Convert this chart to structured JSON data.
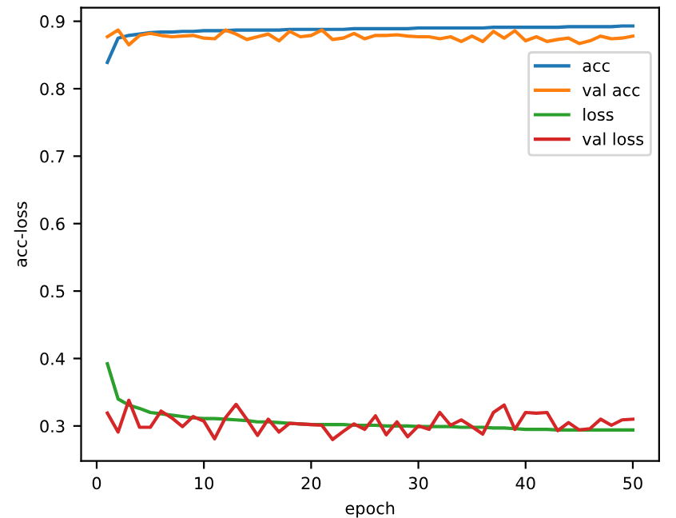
{
  "chart_data": {
    "type": "line",
    "xlabel": "epoch",
    "ylabel": "acc-loss",
    "x": [
      1,
      2,
      3,
      4,
      5,
      6,
      7,
      8,
      9,
      10,
      11,
      12,
      13,
      14,
      15,
      16,
      17,
      18,
      19,
      20,
      21,
      22,
      23,
      24,
      25,
      26,
      27,
      28,
      29,
      30,
      31,
      32,
      33,
      34,
      35,
      36,
      37,
      38,
      39,
      40,
      41,
      42,
      43,
      44,
      45,
      46,
      47,
      48,
      49,
      50
    ],
    "series": [
      {
        "name": "acc",
        "color": "#1f77b4",
        "values": [
          0.839,
          0.875,
          0.879,
          0.881,
          0.883,
          0.884,
          0.884,
          0.885,
          0.885,
          0.886,
          0.886,
          0.886,
          0.887,
          0.887,
          0.887,
          0.887,
          0.887,
          0.888,
          0.888,
          0.888,
          0.888,
          0.888,
          0.888,
          0.889,
          0.889,
          0.889,
          0.889,
          0.889,
          0.889,
          0.89,
          0.89,
          0.89,
          0.89,
          0.89,
          0.89,
          0.89,
          0.891,
          0.891,
          0.891,
          0.891,
          0.891,
          0.891,
          0.891,
          0.892,
          0.892,
          0.892,
          0.892,
          0.892,
          0.893,
          0.893
        ]
      },
      {
        "name": "val acc",
        "color": "#ff7f0e",
        "values": [
          0.877,
          0.887,
          0.865,
          0.879,
          0.882,
          0.879,
          0.877,
          0.878,
          0.879,
          0.875,
          0.874,
          0.887,
          0.881,
          0.873,
          0.877,
          0.881,
          0.871,
          0.885,
          0.877,
          0.879,
          0.887,
          0.873,
          0.875,
          0.882,
          0.874,
          0.879,
          0.879,
          0.88,
          0.878,
          0.877,
          0.877,
          0.874,
          0.877,
          0.87,
          0.878,
          0.87,
          0.885,
          0.875,
          0.886,
          0.871,
          0.877,
          0.87,
          0.873,
          0.875,
          0.867,
          0.871,
          0.878,
          0.874,
          0.875,
          0.878
        ]
      },
      {
        "name": "loss",
        "color": "#2ca02c",
        "values": [
          0.392,
          0.34,
          0.331,
          0.326,
          0.32,
          0.318,
          0.316,
          0.314,
          0.312,
          0.311,
          0.311,
          0.31,
          0.309,
          0.308,
          0.306,
          0.306,
          0.305,
          0.304,
          0.303,
          0.302,
          0.302,
          0.302,
          0.302,
          0.301,
          0.301,
          0.301,
          0.3,
          0.3,
          0.3,
          0.299,
          0.299,
          0.299,
          0.299,
          0.298,
          0.298,
          0.298,
          0.297,
          0.297,
          0.296,
          0.295,
          0.295,
          0.295,
          0.294,
          0.294,
          0.294,
          0.294,
          0.294,
          0.294,
          0.294,
          0.294
        ]
      },
      {
        "name": "val loss",
        "color": "#d62728",
        "values": [
          0.319,
          0.291,
          0.338,
          0.298,
          0.298,
          0.322,
          0.312,
          0.299,
          0.314,
          0.307,
          0.281,
          0.312,
          0.332,
          0.31,
          0.286,
          0.31,
          0.291,
          0.304,
          0.303,
          0.302,
          0.301,
          0.28,
          0.292,
          0.303,
          0.295,
          0.315,
          0.287,
          0.306,
          0.284,
          0.3,
          0.295,
          0.32,
          0.301,
          0.309,
          0.299,
          0.288,
          0.32,
          0.331,
          0.295,
          0.32,
          0.319,
          0.32,
          0.293,
          0.305,
          0.294,
          0.296,
          0.31,
          0.301,
          0.309,
          0.31
        ]
      }
    ],
    "xlim": [
      -1.45,
      52.45
    ],
    "xticks": [
      0,
      10,
      20,
      30,
      40,
      50
    ],
    "ylim": [
      0.248,
      0.92
    ],
    "yticks": [
      0.3,
      0.4,
      0.5,
      0.6,
      0.7,
      0.8,
      0.9
    ],
    "legend": "top right",
    "grid": false
  }
}
